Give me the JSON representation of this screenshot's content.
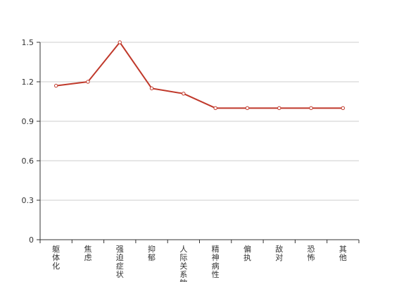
{
  "chart_data": {
    "type": "line",
    "categories": [
      "躯体化",
      "焦虑",
      "强迫症状",
      "抑郁",
      "人际关系敏感",
      "精神病性",
      "偏执",
      "敌对",
      "恐怖",
      "其他"
    ],
    "series": [
      {
        "values": [
          1.17,
          1.2,
          1.5,
          1.15,
          1.11,
          1.0,
          1.0,
          1.0,
          1.0,
          1.0
        ]
      }
    ],
    "yticks": [
      "0",
      "0.3",
      "0.6",
      "0.9",
      "1.2",
      "1.5"
    ],
    "ylim": [
      0,
      1.5
    ],
    "grid": true,
    "line_color": "#c0392b",
    "axis_color": "#333333",
    "grid_color": "#cccccc"
  }
}
